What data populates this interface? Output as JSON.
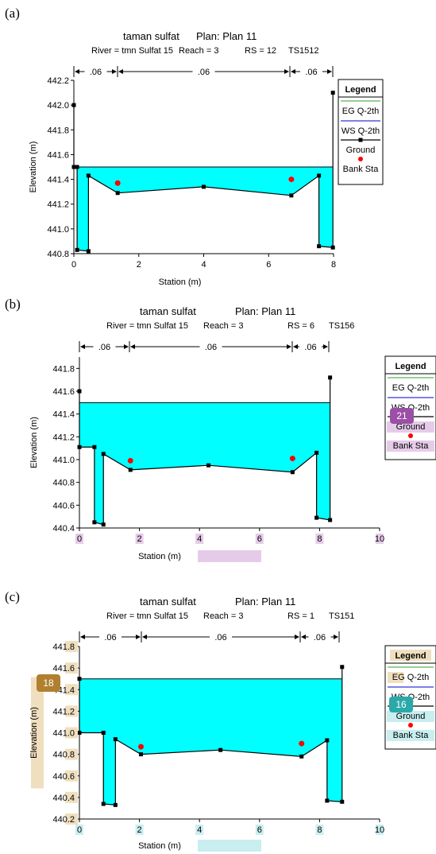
{
  "panels": [
    {
      "label": "(a)",
      "title": "taman sulfat",
      "plan": "Plan: Plan 11",
      "river": "River = tmn Sulfat 15",
      "reach": "Reach = 3",
      "rs": "RS = 12",
      "ts": "TS1512",
      "nvalues": [
        ".06",
        ".06",
        ".06"
      ]
    },
    {
      "label": "(b)",
      "title": "taman sulfat",
      "plan": "Plan: Plan 11",
      "river": "River = tmn Sulfat 15",
      "reach": "Reach = 3",
      "rs": "RS = 6",
      "ts": "TS156",
      "nvalues": [
        ".06",
        ".06",
        ".06"
      ]
    },
    {
      "label": "(c)",
      "title": "taman sulfat",
      "plan": "Plan: Plan 11",
      "river": "River = tmn Sulfat 15",
      "reach": "Reach = 3",
      "rs": "RS = 1",
      "ts": "TS151",
      "nvalues": [
        ".06",
        ".06",
        ".06"
      ]
    }
  ],
  "badges": [
    {
      "label": "21",
      "color": "#9b4fa6"
    },
    {
      "label": "18",
      "color": "#b08030"
    },
    {
      "label": "16",
      "color": "#2aa9a9"
    }
  ],
  "colors": {
    "water": "#00ffff",
    "eg_line": "#2ca02c",
    "ws_line": "#0000cc",
    "ground": "#000000",
    "bank": "#ff0000",
    "hl_purple": "#e6cbe9",
    "hl_tan": "#f0dfbf",
    "hl_cyan": "#c8eef0"
  },
  "chart_data": [
    {
      "type": "line",
      "title": "taman sulfat",
      "xlabel": "Station (m)",
      "ylabel": "Elevation (m)",
      "xlim": [
        0,
        8
      ],
      "ylim": [
        440.8,
        442.2
      ],
      "xticks": [
        0,
        2,
        4,
        6,
        8
      ],
      "yticks": [
        440.8,
        441.0,
        441.2,
        441.4,
        441.6,
        441.8,
        442.0,
        442.2
      ],
      "ws_elev": 441.5,
      "ground": [
        {
          "x": 0.0,
          "y": 442.0
        },
        {
          "x": 0.0,
          "y": 441.5
        },
        {
          "x": 0.1,
          "y": 441.5
        },
        {
          "x": 0.1,
          "y": 440.83
        },
        {
          "x": 0.45,
          "y": 440.82
        },
        {
          "x": 0.45,
          "y": 441.43
        },
        {
          "x": 1.35,
          "y": 441.29
        },
        {
          "x": 4.0,
          "y": 441.34
        },
        {
          "x": 6.7,
          "y": 441.27
        },
        {
          "x": 7.55,
          "y": 441.43
        },
        {
          "x": 7.55,
          "y": 440.86
        },
        {
          "x": 7.98,
          "y": 440.85
        },
        {
          "x": 7.98,
          "y": 442.1
        }
      ],
      "bank_stations": [
        {
          "x": 1.35,
          "y": 441.37
        },
        {
          "x": 6.7,
          "y": 441.4
        }
      ],
      "legend": {
        "title": "Legend",
        "entries": [
          "EG Q-2th",
          "WS Q-2th",
          "Ground",
          "Bank Sta"
        ],
        "position": "right"
      }
    },
    {
      "type": "line",
      "title": "taman sulfat",
      "xlabel": "Station (m)",
      "ylabel": "Elevation (m)",
      "xlim": [
        0,
        10
      ],
      "ylim": [
        440.4,
        441.9
      ],
      "xticks": [
        0,
        2,
        4,
        6,
        8,
        10
      ],
      "yticks": [
        440.4,
        440.6,
        440.8,
        441.0,
        441.2,
        441.4,
        441.6,
        441.8
      ],
      "ws_elev": 441.5,
      "ground": [
        {
          "x": 0.0,
          "y": 441.6
        },
        {
          "x": 0.0,
          "y": 441.11
        },
        {
          "x": 0.5,
          "y": 441.11
        },
        {
          "x": 0.5,
          "y": 440.45
        },
        {
          "x": 0.8,
          "y": 440.43
        },
        {
          "x": 0.8,
          "y": 441.05
        },
        {
          "x": 1.7,
          "y": 440.91
        },
        {
          "x": 4.3,
          "y": 440.95
        },
        {
          "x": 7.1,
          "y": 440.89
        },
        {
          "x": 7.9,
          "y": 441.06
        },
        {
          "x": 7.9,
          "y": 440.49
        },
        {
          "x": 8.35,
          "y": 440.47
        },
        {
          "x": 8.35,
          "y": 441.72
        }
      ],
      "bank_stations": [
        {
          "x": 1.7,
          "y": 440.99
        },
        {
          "x": 7.1,
          "y": 441.01
        }
      ],
      "legend": {
        "title": "Legend",
        "entries": [
          "EG Q-2th",
          "WS Q-2th",
          "Ground",
          "Bank Sta"
        ],
        "position": "right"
      }
    },
    {
      "type": "line",
      "title": "taman sulfat",
      "xlabel": "Station (m)",
      "ylabel": "Elevation (m)",
      "xlim": [
        0,
        10
      ],
      "ylim": [
        440.2,
        441.8
      ],
      "xticks": [
        0,
        2,
        4,
        6,
        8,
        10
      ],
      "yticks": [
        440.2,
        440.4,
        440.6,
        440.8,
        441.0,
        441.2,
        441.4,
        441.6,
        441.8
      ],
      "ws_elev": 441.5,
      "ground": [
        {
          "x": 0.0,
          "y": 441.5
        },
        {
          "x": 0.0,
          "y": 441.0
        },
        {
          "x": 0.8,
          "y": 441.0
        },
        {
          "x": 0.8,
          "y": 440.34
        },
        {
          "x": 1.2,
          "y": 440.33
        },
        {
          "x": 1.2,
          "y": 440.94
        },
        {
          "x": 2.05,
          "y": 440.8
        },
        {
          "x": 4.7,
          "y": 440.84
        },
        {
          "x": 7.4,
          "y": 440.78
        },
        {
          "x": 8.25,
          "y": 440.93
        },
        {
          "x": 8.25,
          "y": 440.37
        },
        {
          "x": 8.75,
          "y": 440.36
        },
        {
          "x": 8.75,
          "y": 441.61
        }
      ],
      "bank_stations": [
        {
          "x": 2.05,
          "y": 440.87
        },
        {
          "x": 7.4,
          "y": 440.9
        }
      ],
      "legend": {
        "title": "Legend",
        "entries": [
          "EG Q-2th",
          "WS Q-2th",
          "Ground",
          "Bank Sta"
        ],
        "position": "right"
      }
    }
  ]
}
